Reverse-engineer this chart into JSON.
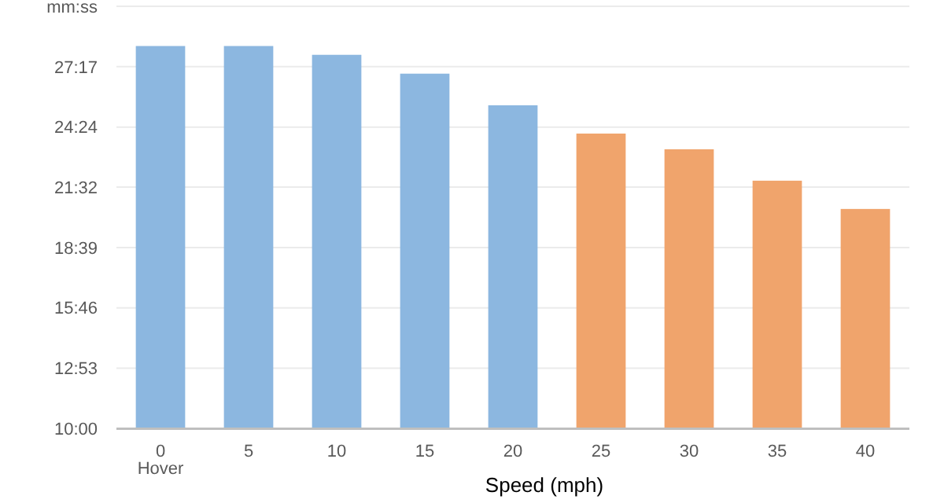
{
  "chart_data": {
    "type": "bar",
    "xlabel": "Speed (mph)",
    "categories": [
      "0\nHover",
      "5",
      "10",
      "15",
      "20",
      "25",
      "30",
      "35",
      "40"
    ],
    "values": [
      28.27,
      28.27,
      27.85,
      26.95,
      25.44,
      24.09,
      23.34,
      21.84,
      20.49
    ],
    "colors": [
      "#8cb7e0",
      "#8cb7e0",
      "#8cb7e0",
      "#8cb7e0",
      "#8cb7e0",
      "#f0a46c",
      "#f0a46c",
      "#f0a46c",
      "#f0a46c"
    ],
    "ylim": [
      10,
      30.167
    ],
    "yticks": [
      {
        "value": 10,
        "label": "10:00"
      },
      {
        "value": 12.883,
        "label": "12:53"
      },
      {
        "value": 15.767,
        "label": "15:46"
      },
      {
        "value": 18.65,
        "label": "18:39"
      },
      {
        "value": 21.533,
        "label": "21:32"
      },
      {
        "value": 24.4,
        "label": "24:24"
      },
      {
        "value": 27.283,
        "label": "27:17"
      },
      {
        "value": 30.167,
        "label": "mm:ss"
      }
    ],
    "grid": "y"
  }
}
